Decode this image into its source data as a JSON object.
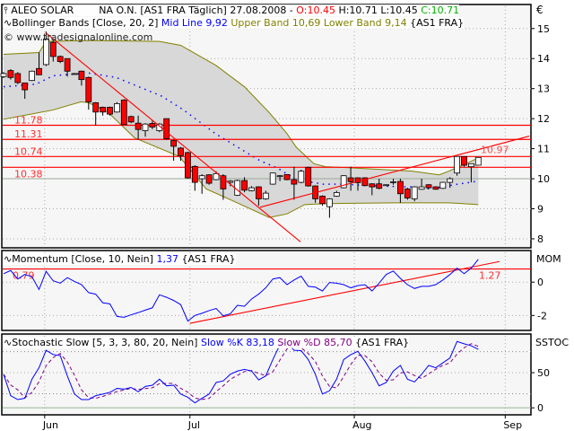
{
  "header": {
    "symbol": "ALEO SOLAR",
    "info": "NA O.N. [AS1 FRA  Täglich] 27.08.2008 -",
    "open": "O:10.45",
    "high": "H:10.71",
    "low": "L:10.45",
    "close": "C:10.71",
    "currency": "€"
  },
  "bollinger_legend": {
    "name": "Bollinger Bands [Close, 20, 2]",
    "mid": "Mid Line 9,92",
    "bands": "Upper Band 10,69 Lower Band 9,14",
    "market": "{AS1 FRA}"
  },
  "watermark": "© www.tradesignalonline.com",
  "momentum_legend": {
    "name": "Momentum [Close, 10, Nein]",
    "value": "1,37",
    "market": "{AS1 FRA}",
    "axis_title": "MOM"
  },
  "stoch_legend": {
    "name": "Stochastic Slow [5, 3, 3, 80, 20, Nein]",
    "k": "Slow %K 83,18",
    "d": "Slow %D 85,70",
    "market": "{AS1 FRA}",
    "axis_title": "SSTOC"
  },
  "colors": {
    "up": "#ffffff",
    "down": "#ff0000",
    "band_fill": "#d8d8d8",
    "band_line": "#808000",
    "mid_line": "#0000ff",
    "trend": "#ff0000",
    "momentum": "#0000ff",
    "stoch_k": "#0000ff",
    "stoch_d": "#800080",
    "open_text": "#ff0000",
    "close_text": "#00b000"
  },
  "chart_data": [
    {
      "type": "candlestick",
      "title": "ALEO SOLAR",
      "ylim": [
        7.7,
        15.8
      ],
      "yticks": [
        8,
        9,
        10,
        11,
        12,
        13,
        14,
        15
      ],
      "grid": true,
      "month_ticks": [
        {
          "label": "Jun",
          "index": 5.8
        },
        {
          "label": "Jul",
          "index": 26.3
        },
        {
          "label": "Aug",
          "index": 49.5
        },
        {
          "label": "Sep",
          "index": 70.8
        }
      ],
      "ohlc": [
        [
          13.4,
          13.55,
          13.35,
          13.5
        ],
        [
          13.6,
          13.65,
          13.3,
          13.37
        ],
        [
          13.5,
          13.55,
          13.15,
          13.2
        ],
        [
          13.19,
          13.2,
          12.66,
          12.96
        ],
        [
          13.27,
          13.6,
          13.25,
          13.58
        ],
        [
          13.67,
          14.2,
          13.45,
          13.46
        ],
        [
          13.8,
          14.9,
          13.75,
          14.65
        ],
        [
          14.54,
          14.6,
          13.9,
          14.07
        ],
        [
          14.07,
          14.1,
          13.85,
          13.9
        ],
        [
          14.0,
          14.0,
          13.4,
          13.58
        ],
        [
          13.5,
          13.52,
          13.48,
          13.5
        ],
        [
          13.58,
          13.6,
          13.1,
          13.3
        ],
        [
          13.37,
          13.4,
          12.3,
          12.56
        ],
        [
          12.53,
          12.55,
          11.78,
          12.22
        ],
        [
          12.38,
          12.4,
          12.1,
          12.22
        ],
        [
          12.38,
          12.4,
          12.1,
          12.15
        ],
        [
          12.22,
          12.55,
          12.2,
          12.5
        ],
        [
          12.62,
          12.65,
          11.8,
          11.8
        ],
        [
          12.07,
          12.1,
          11.85,
          11.89
        ],
        [
          11.85,
          12.1,
          11.3,
          11.64
        ],
        [
          11.6,
          11.85,
          11.4,
          11.82
        ],
        [
          11.84,
          11.95,
          11.65,
          11.72
        ],
        [
          11.6,
          11.85,
          11.55,
          11.82
        ],
        [
          12.0,
          12.0,
          11.3,
          11.33
        ],
        [
          11.27,
          11.3,
          10.6,
          11.08
        ],
        [
          11.02,
          11.05,
          10.6,
          10.77
        ],
        [
          10.87,
          10.9,
          10.0,
          10.03
        ],
        [
          10.41,
          10.45,
          9.6,
          9.88
        ],
        [
          10.0,
          10.15,
          9.5,
          10.1
        ],
        [
          10.13,
          10.15,
          9.8,
          9.85
        ],
        [
          9.97,
          10.25,
          9.95,
          10.17
        ],
        [
          10.1,
          10.15,
          9.3,
          9.66
        ],
        [
          9.88,
          9.95,
          9.75,
          9.92
        ],
        [
          9.45,
          9.97,
          9.43,
          9.94
        ],
        [
          9.94,
          10.05,
          9.55,
          9.62
        ],
        [
          9.6,
          9.75,
          9.58,
          9.7
        ],
        [
          9.73,
          9.75,
          9.1,
          9.33
        ],
        [
          9.33,
          9.6,
          9.3,
          9.52
        ],
        [
          9.82,
          10.2,
          9.8,
          10.19
        ],
        [
          10.1,
          10.12,
          9.92,
          10.1
        ],
        [
          10.14,
          10.15,
          9.95,
          9.97
        ],
        [
          9.97,
          10.4,
          9.3,
          9.82
        ],
        [
          9.88,
          10.3,
          9.85,
          10.25
        ],
        [
          10.38,
          10.4,
          9.74,
          9.76
        ],
        [
          9.76,
          9.78,
          9.2,
          9.33
        ],
        [
          9.42,
          9.45,
          9.1,
          9.17
        ],
        [
          9.07,
          9.35,
          8.7,
          9.33
        ],
        [
          9.42,
          9.6,
          9.4,
          9.54
        ],
        [
          9.7,
          10.12,
          9.68,
          10.1
        ],
        [
          10.03,
          10.4,
          9.6,
          9.9
        ],
        [
          10.03,
          10.05,
          9.6,
          9.87
        ],
        [
          10.03,
          10.05,
          9.75,
          9.77
        ],
        [
          9.83,
          9.85,
          9.45,
          9.73
        ],
        [
          9.83,
          10.0,
          9.65,
          9.68
        ],
        [
          9.8,
          9.81,
          9.79,
          9.8
        ],
        [
          9.9,
          10.0,
          9.8,
          9.9
        ],
        [
          9.91,
          10.0,
          9.2,
          9.5
        ],
        [
          9.66,
          9.7,
          9.3,
          9.36
        ],
        [
          9.33,
          9.75,
          9.25,
          9.73
        ],
        [
          9.65,
          10.0,
          9.63,
          9.73
        ],
        [
          9.8,
          9.82,
          9.65,
          9.7
        ],
        [
          9.73,
          9.75,
          9.63,
          9.65
        ],
        [
          9.68,
          9.9,
          9.66,
          9.88
        ],
        [
          9.88,
          10.05,
          9.7,
          10.0
        ],
        [
          10.19,
          10.74,
          10.1,
          10.74
        ],
        [
          10.74,
          10.75,
          10.4,
          10.45
        ],
        [
          10.4,
          10.5,
          9.88,
          10.5
        ],
        [
          10.45,
          10.71,
          10.45,
          10.71
        ]
      ],
      "bollinger": {
        "upper": [
          [
            0,
            14.14
          ],
          [
            5,
            14.2
          ],
          [
            6,
            14.57
          ],
          [
            12,
            14.6
          ],
          [
            22,
            14.57
          ],
          [
            25,
            14.44
          ],
          [
            30,
            13.77
          ],
          [
            34,
            13.06
          ],
          [
            37.5,
            12.2
          ],
          [
            40,
            11.5
          ],
          [
            41.3,
            11.05
          ],
          [
            43.8,
            10.5
          ],
          [
            45.4,
            10.4
          ],
          [
            47.6,
            10.38
          ],
          [
            57.7,
            10.25
          ],
          [
            61.5,
            10.13
          ],
          [
            62.8,
            10.25
          ],
          [
            64.7,
            10.44
          ],
          [
            67,
            10.69
          ]
        ],
        "lower": [
          [
            0,
            11.98
          ],
          [
            7,
            12.29
          ],
          [
            10.9,
            12.56
          ],
          [
            12,
            12.53
          ],
          [
            14.7,
            12.22
          ],
          [
            18.5,
            11.36
          ],
          [
            24.8,
            10.74
          ],
          [
            28.6,
            9.66
          ],
          [
            32.4,
            9.26
          ],
          [
            37.5,
            8.71
          ],
          [
            40,
            8.83
          ],
          [
            42.5,
            9.14
          ],
          [
            45.1,
            9.17
          ],
          [
            55.2,
            9.2
          ],
          [
            62.8,
            9.2
          ],
          [
            67,
            9.14
          ]
        ],
        "mid": [
          [
            0,
            13.06
          ],
          [
            4.6,
            13.15
          ],
          [
            7,
            13.43
          ],
          [
            12,
            13.52
          ],
          [
            15.9,
            13.37
          ],
          [
            22.3,
            12.75
          ],
          [
            25.4,
            12.29
          ],
          [
            29.9,
            11.5
          ],
          [
            36.2,
            10.6
          ],
          [
            38.7,
            10.35
          ],
          [
            41.3,
            9.97
          ],
          [
            45.1,
            9.82
          ],
          [
            47.6,
            9.82
          ],
          [
            52.7,
            9.76
          ],
          [
            57.1,
            9.73
          ],
          [
            60.3,
            9.66
          ],
          [
            64.1,
            9.82
          ],
          [
            67,
            9.92
          ]
        ]
      },
      "horizontal_lines": [
        {
          "value": 11.78,
          "label": "11.78"
        },
        {
          "value": 11.31,
          "label": "11.31"
        },
        {
          "value": 10.74,
          "label": "10.74"
        },
        {
          "value": 10.38,
          "label": "10.38"
        }
      ],
      "reference_line": 10.0,
      "trendlines": [
        {
          "from": [
            6,
            14.85
          ],
          "to": [
            41.9,
            7.9
          ]
        },
        {
          "from": [
            36.2,
            9.05
          ],
          "to": [
            74.2,
            11.42
          ],
          "label": "10.97"
        }
      ]
    },
    {
      "type": "line",
      "title": "Momentum [Close, 10, Nein]",
      "ylim": [
        -2.9,
        1.9
      ],
      "yticks": [
        -2,
        0
      ],
      "series": [
        {
          "name": "Momentum",
          "values": [
            0.51,
            0.7,
            0.19,
            0.46,
            0.32,
            -0.44,
            0.65,
            0.08,
            -0.06,
            0.27,
            0.04,
            -0.15,
            -0.63,
            -0.72,
            -1.24,
            -1.3,
            -2.06,
            -2.11,
            -1.96,
            -1.83,
            -1.68,
            -1.54,
            -0.76,
            -0.91,
            -1.1,
            -1.35,
            -2.34,
            -2.0,
            -1.87,
            -1.71,
            -1.58,
            -2.02,
            -1.9,
            -1.39,
            -1.45,
            -1.01,
            -0.72,
            -0.34,
            0.19,
            0.27,
            -0.15,
            0.13,
            0.36,
            -0.25,
            -0.3,
            -0.53,
            -0.02,
            -0.06,
            -0.15,
            -0.34,
            -0.21,
            -0.15,
            -0.53,
            -0.06,
            0.46,
            0.67,
            0.23,
            -0.15,
            -0.38,
            -0.25,
            -0.25,
            -0.15,
            0.13,
            0.46,
            0.84,
            0.51,
            0.84,
            1.37
          ]
        }
      ],
      "horizontal_lines": [
        {
          "value": 0.79,
          "label": "0.79"
        }
      ],
      "trendlines": [
        {
          "from": [
            26.3,
            -2.47
          ],
          "to": [
            70,
            1.24
          ],
          "label": "1.27"
        }
      ]
    },
    {
      "type": "line",
      "title": "Stochastic Slow [5, 3, 3, 80, 20, Nein]",
      "ylim": [
        -10,
        105
      ],
      "yticks": [
        0,
        50
      ],
      "levels": [
        20,
        80
      ],
      "series": [
        {
          "name": "Slow %K",
          "values": [
            47.7,
            17.3,
            11.7,
            13.6,
            40.7,
            57,
            81.8,
            75.7,
            74.3,
            45.3,
            19.6,
            11.7,
            11.7,
            17.3,
            19.6,
            22,
            27.6,
            26.6,
            29,
            22.9,
            30.4,
            32.2,
            40.7,
            31.3,
            32.2,
            19.6,
            15,
            7,
            13.6,
            19.6,
            36,
            38.3,
            47.7,
            52.3,
            54.7,
            52.3,
            39.7,
            45.3,
            68.7,
            89.7,
            93,
            81.8,
            81.3,
            68.7,
            47.7,
            19.6,
            24.3,
            40.7,
            68.7,
            75.7,
            80.4,
            66.4,
            50,
            31.3,
            36,
            52.3,
            60.3,
            40.7,
            36.9,
            47.7,
            60.3,
            57,
            64,
            71,
            94.4,
            91.1,
            88.3,
            83.18
          ]
        },
        {
          "name": "Slow %D"
        }
      ]
    }
  ]
}
